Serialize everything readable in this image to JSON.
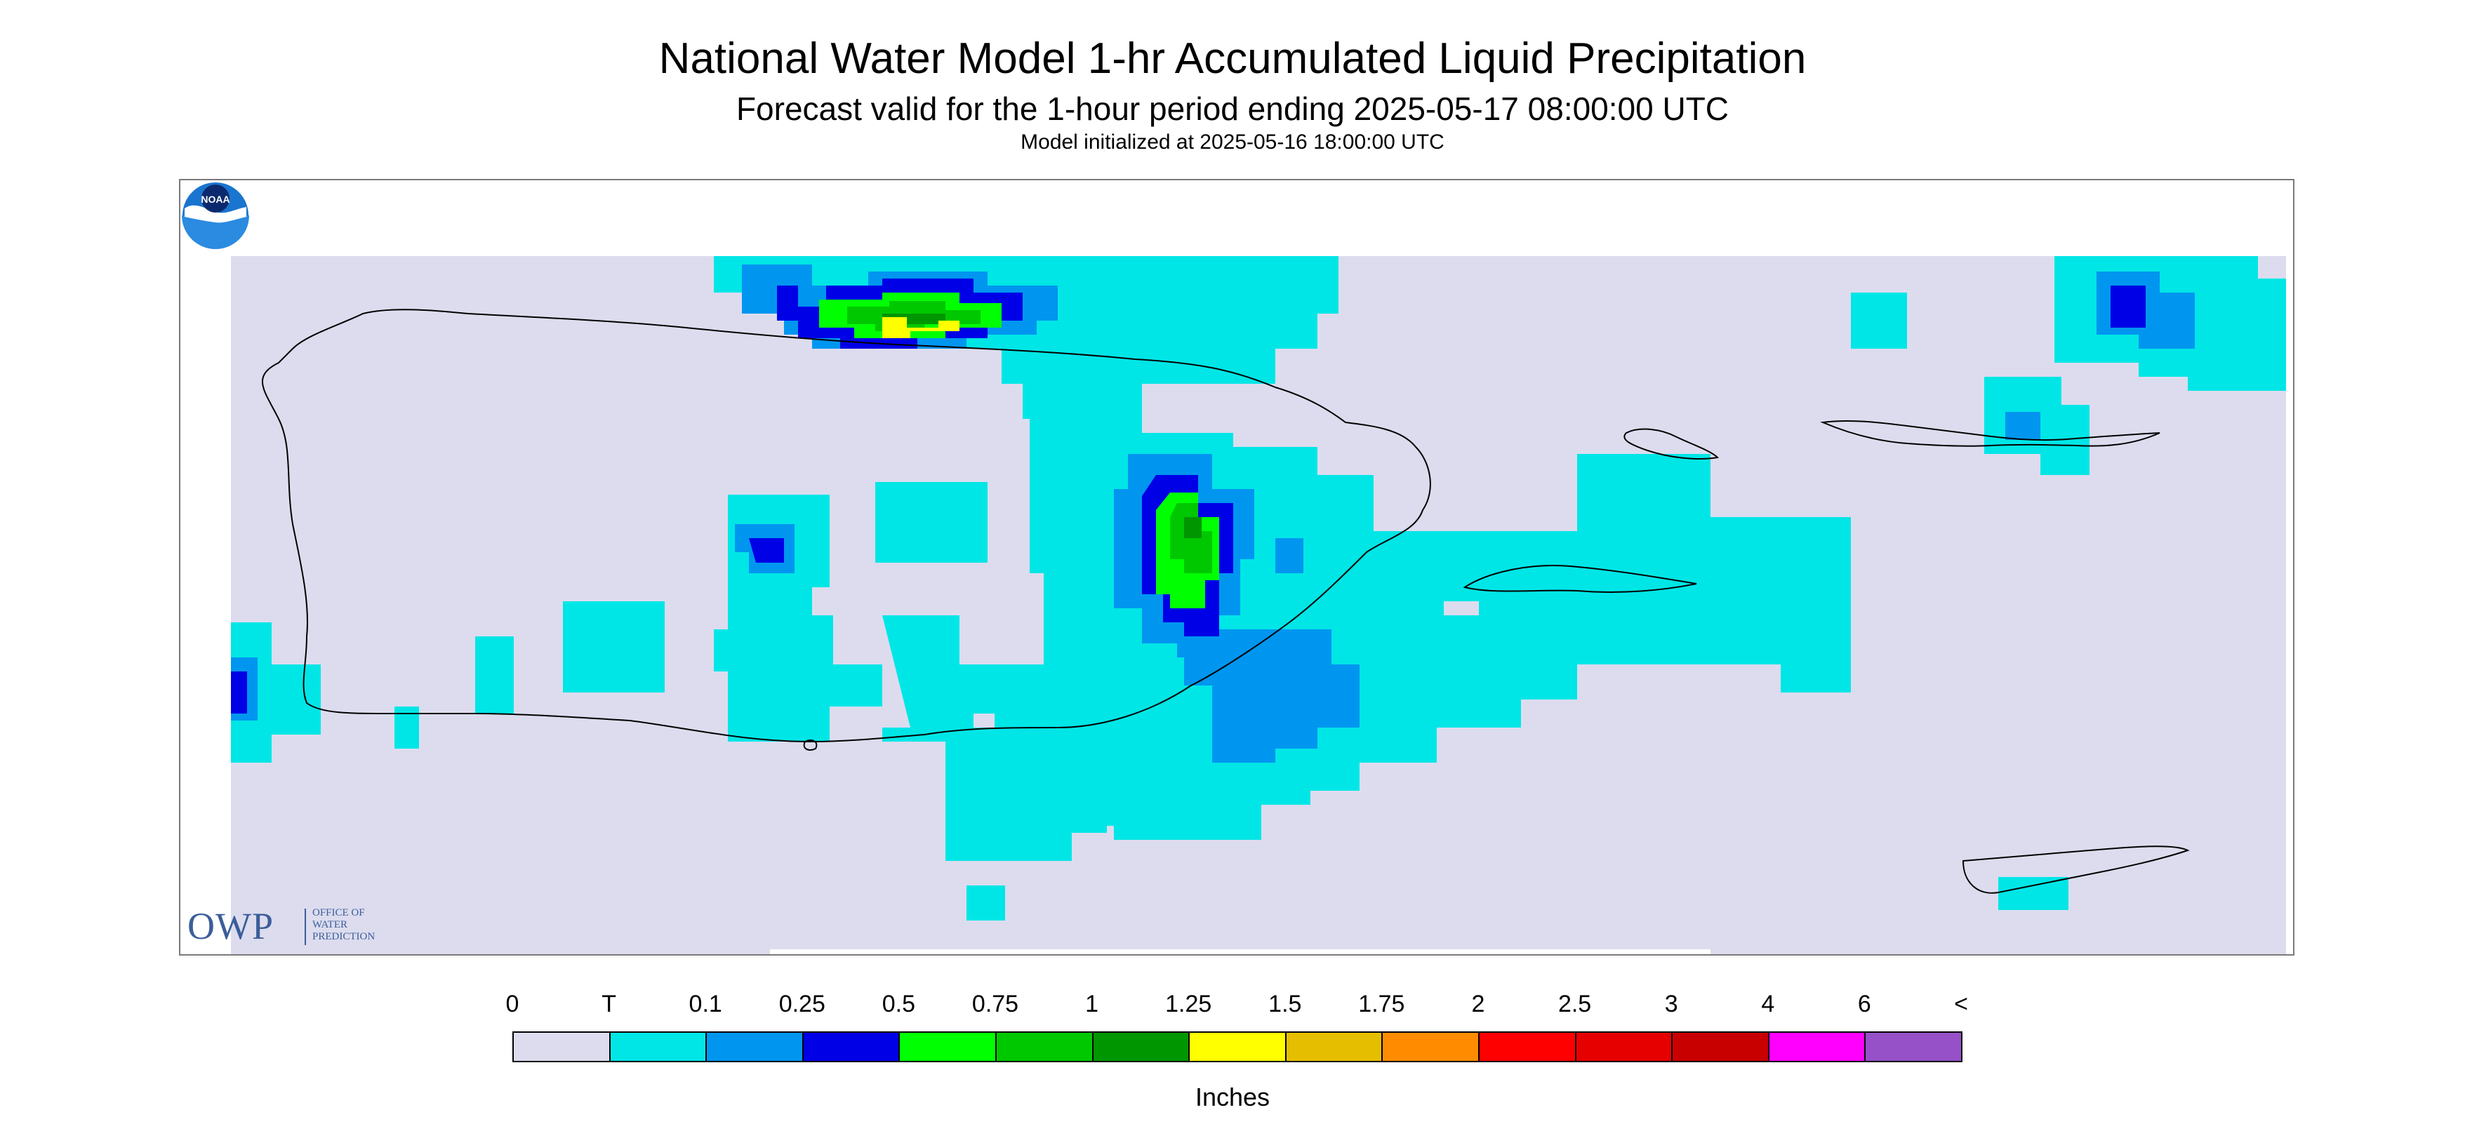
{
  "header": {
    "title": "National Water Model 1-hr Accumulated Liquid Precipitation",
    "subtitle": "Forecast valid for the 1-hour period ending 2025-05-17 08:00:00 UTC",
    "init": "Model initialized at 2025-05-16 18:00:00 UTC"
  },
  "logos": {
    "owp_letters": "OWP",
    "owp_line1": "OFFICE OF",
    "owp_line2": "WATER",
    "owp_line3": "PREDICTION",
    "noaa_text": "NOAA"
  },
  "legend": {
    "units": "Inches",
    "labels": [
      "0",
      "T",
      "0.1",
      "0.25",
      "0.5",
      "0.75",
      "1",
      "1.25",
      "1.5",
      "1.75",
      "2",
      "2.5",
      "3",
      "4",
      "6",
      "<"
    ],
    "colors": [
      "#dcdcee",
      "#00e6e6",
      "#0096f0",
      "#0000e6",
      "#00ff00",
      "#00c800",
      "#009600",
      "#ffff00",
      "#e6be00",
      "#ff8c00",
      "#ff0000",
      "#e60000",
      "#c80000",
      "#ff00ff",
      "#9650c8"
    ]
  },
  "colors": {
    "no_precip": "#dcdcee",
    "coastline": "#000000",
    "frame": "#7a7a7a"
  }
}
